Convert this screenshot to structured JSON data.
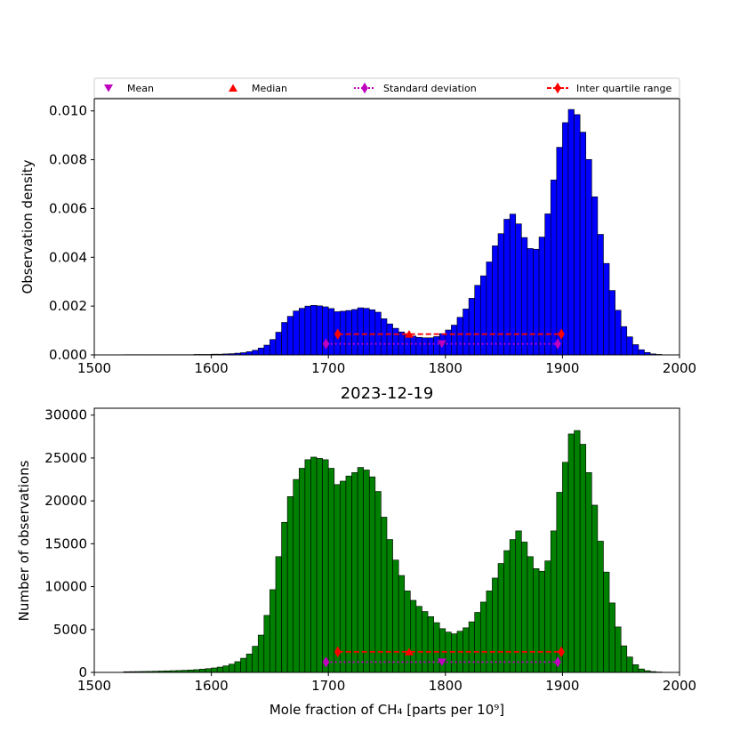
{
  "chart_data": [
    {
      "type": "bar",
      "title": "",
      "xlabel": "",
      "ylabel": "Observation density",
      "xlim": [
        1500,
        2000
      ],
      "ylim": [
        0,
        0.0105
      ],
      "x_ticks": [
        "1500",
        "1600",
        "1700",
        "1800",
        "1900",
        "2000"
      ],
      "y_ticks": [
        "0.000",
        "0.002",
        "0.004",
        "0.006",
        "0.008",
        "0.010"
      ],
      "y_tick_values": [
        0,
        0.002,
        0.004,
        0.006,
        0.008,
        0.01
      ],
      "bar_color": "#0000ff",
      "bin_start": 1525,
      "bin_width": 5,
      "values": [
        1e-05,
        1e-05,
        1e-05,
        1e-05,
        1e-05,
        1e-05,
        1e-05,
        1e-05,
        1e-05,
        1e-05,
        1e-05,
        1e-05,
        2e-05,
        2e-05,
        2e-05,
        3e-05,
        3e-05,
        4e-05,
        5e-05,
        7e-05,
        9e-05,
        0.00013,
        0.00019,
        0.00028,
        0.0004,
        0.00063,
        0.00093,
        0.00133,
        0.00158,
        0.0018,
        0.00191,
        0.002,
        0.00203,
        0.00201,
        0.00197,
        0.0019,
        0.00177,
        0.00179,
        0.00182,
        0.00186,
        0.00193,
        0.00191,
        0.00185,
        0.00175,
        0.00148,
        0.00127,
        0.00109,
        0.00094,
        0.00085,
        0.00077,
        0.00072,
        0.0007,
        0.0007,
        0.00075,
        0.00087,
        0.00102,
        0.00122,
        0.00154,
        0.00188,
        0.00232,
        0.00285,
        0.00324,
        0.00381,
        0.00447,
        0.00497,
        0.00556,
        0.00577,
        0.00537,
        0.00481,
        0.00436,
        0.00433,
        0.00483,
        0.00578,
        0.00717,
        0.00851,
        0.00952,
        0.01006,
        0.00985,
        0.00913,
        0.00801,
        0.00648,
        0.00494,
        0.00375,
        0.00264,
        0.00183,
        0.00116,
        0.00074,
        0.00042,
        0.00021,
        0.0001,
        4e-05,
        2e-05
      ],
      "series": [
        {
          "name": "Mean",
          "marker": "triangle-down",
          "color": "#bf00bf",
          "points": [
            {
              "x": 1797,
              "y": 0.00045
            }
          ]
        },
        {
          "name": "Median",
          "marker": "triangle-up",
          "color": "#ff0000",
          "points": [
            {
              "x": 1769,
              "y": 0.00085
            }
          ]
        },
        {
          "name": "Standard deviation",
          "marker": "diamond",
          "line": "dotted",
          "color": "#bf00bf",
          "points": [
            {
              "x": 1698,
              "y": 0.00045
            },
            {
              "x": 1896,
              "y": 0.00045
            }
          ]
        },
        {
          "name": "Inter quartile range",
          "marker": "diamond",
          "line": "dashed",
          "color": "#ff0000",
          "points": [
            {
              "x": 1708,
              "y": 0.00085
            },
            {
              "x": 1899,
              "y": 0.00085
            }
          ]
        }
      ]
    },
    {
      "type": "bar",
      "title": "2023-12-19",
      "xlabel": "Mole fraction of CH₄ [parts per 10⁹]",
      "ylabel": "Number of observations",
      "xlim": [
        1500,
        2000
      ],
      "ylim": [
        0,
        30800
      ],
      "x_ticks": [
        "1500",
        "1600",
        "1700",
        "1800",
        "1900",
        "2000"
      ],
      "y_ticks": [
        "0",
        "5000",
        "10000",
        "15000",
        "20000",
        "25000",
        "30000"
      ],
      "y_tick_values": [
        0,
        5000,
        10000,
        15000,
        20000,
        25000,
        30000
      ],
      "bar_color": "#008000",
      "bin_start": 1525,
      "bin_width": 5,
      "values": [
        80,
        90,
        100,
        110,
        120,
        140,
        160,
        180,
        200,
        220,
        250,
        280,
        320,
        380,
        440,
        520,
        620,
        760,
        960,
        1250,
        1650,
        2150,
        3050,
        4350,
        6650,
        9650,
        13500,
        17500,
        20500,
        22500,
        23800,
        24800,
        25100,
        24950,
        24800,
        23800,
        21900,
        22300,
        22900,
        23300,
        23900,
        23600,
        22800,
        21100,
        18100,
        15500,
        13100,
        11300,
        9500,
        8400,
        7700,
        7100,
        6500,
        5800,
        5100,
        4700,
        4500,
        4800,
        5200,
        5900,
        7000,
        8200,
        9500,
        11000,
        12700,
        14200,
        15500,
        16500,
        15200,
        13500,
        12100,
        11800,
        13000,
        16500,
        21000,
        24500,
        27800,
        28200,
        26600,
        23300,
        19500,
        15300,
        11700,
        8100,
        5300,
        3100,
        1800,
        900,
        400,
        200,
        100,
        50,
        20
      ],
      "series": [
        {
          "name": "Mean",
          "marker": "triangle-down",
          "color": "#bf00bf",
          "points": [
            {
              "x": 1797,
              "y": 1200
            }
          ]
        },
        {
          "name": "Median",
          "marker": "triangle-up",
          "color": "#ff0000",
          "points": [
            {
              "x": 1769,
              "y": 2400
            }
          ]
        },
        {
          "name": "Standard deviation",
          "marker": "diamond",
          "line": "dotted",
          "color": "#bf00bf",
          "points": [
            {
              "x": 1698,
              "y": 1200
            },
            {
              "x": 1896,
              "y": 1200
            }
          ]
        },
        {
          "name": "Inter quartile range",
          "marker": "diamond",
          "line": "dashed",
          "color": "#ff0000",
          "points": [
            {
              "x": 1708,
              "y": 2400
            },
            {
              "x": 1899,
              "y": 2400
            }
          ]
        }
      ]
    }
  ],
  "legend": {
    "items": [
      {
        "label": "Mean",
        "marker": "triangle-down",
        "color": "#bf00bf"
      },
      {
        "label": "Median",
        "marker": "triangle-up",
        "color": "#ff0000"
      },
      {
        "label": "Standard deviation",
        "marker": "diamond",
        "line": "dotted",
        "color": "#bf00bf"
      },
      {
        "label": "Inter quartile range",
        "marker": "diamond",
        "line": "dashed",
        "color": "#ff0000"
      }
    ]
  }
}
